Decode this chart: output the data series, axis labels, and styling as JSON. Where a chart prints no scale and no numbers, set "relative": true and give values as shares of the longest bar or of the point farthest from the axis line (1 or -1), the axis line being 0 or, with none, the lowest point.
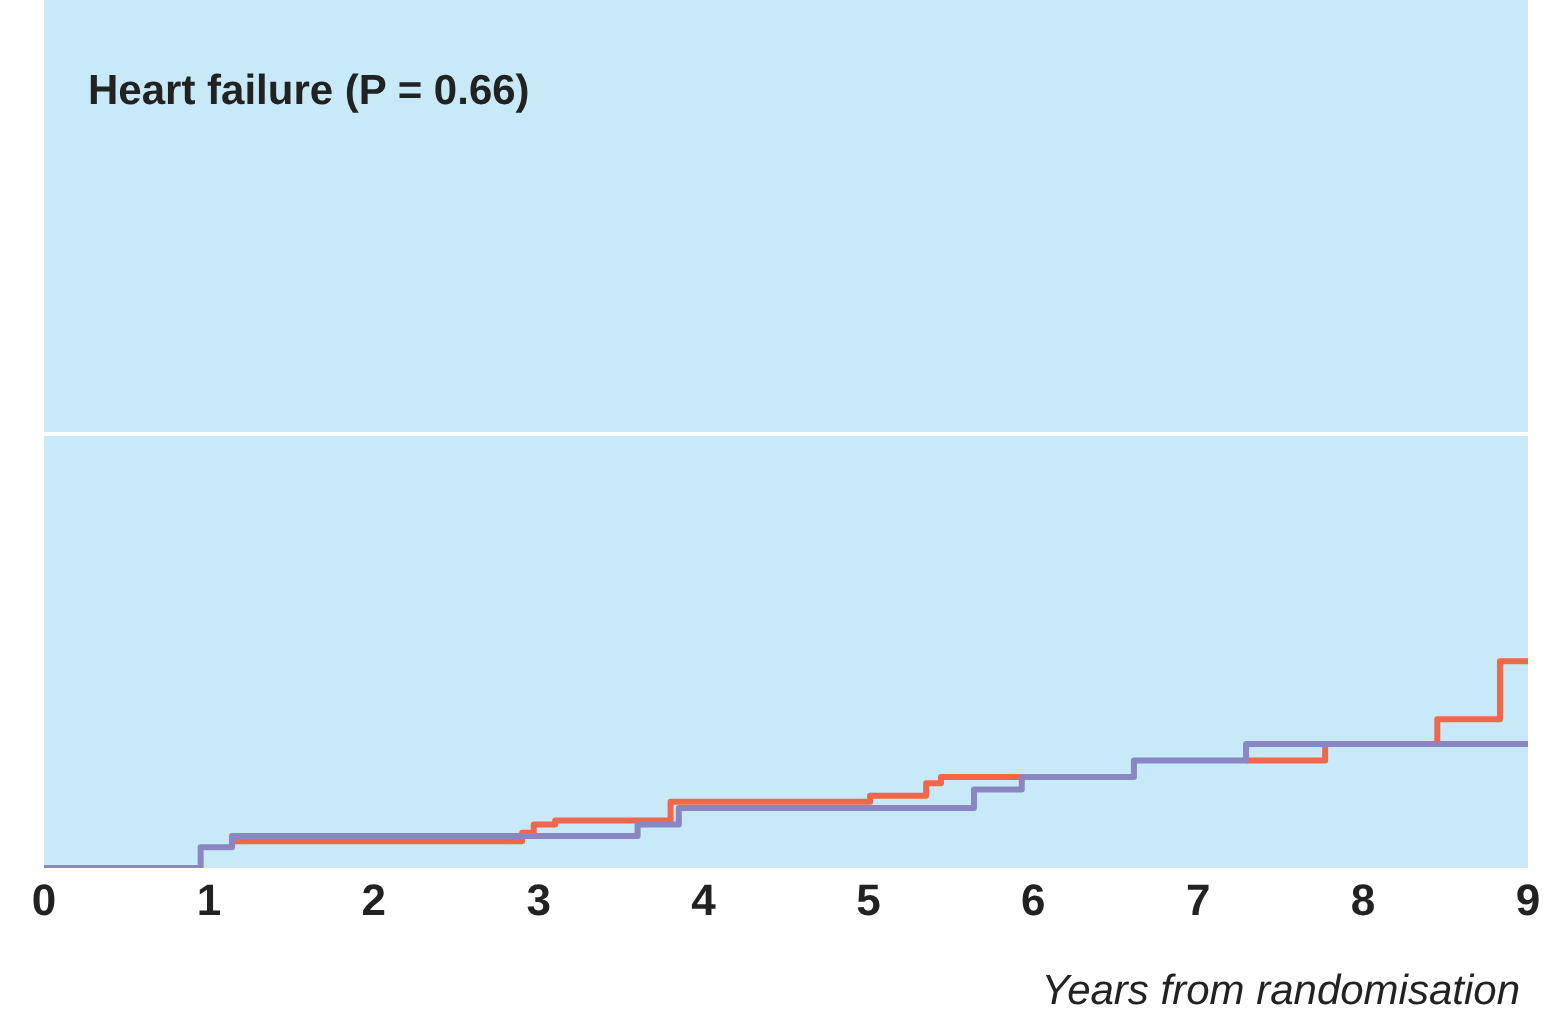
{
  "chart_data": {
    "type": "step",
    "title": "Heart failure (P = 0.66)",
    "xlabel": "Years from randomisation",
    "relative": true,
    "xlim": [
      0,
      9
    ],
    "xticks": [
      0,
      1,
      2,
      3,
      4,
      5,
      6,
      7,
      8,
      9
    ],
    "ref_lines": [
      {
        "axis": "y",
        "value": 2.1,
        "color": "#ffffff"
      }
    ],
    "series": [
      {
        "color": "#f0674a",
        "x": [
          1.14,
          2.9,
          2.97,
          3.1,
          3.8,
          5.01,
          5.35,
          5.44,
          5.93,
          6.61,
          7.29,
          7.77,
          8.45,
          8.83,
          9
        ],
        "values": [
          0.13,
          0.17,
          0.21,
          0.23,
          0.32,
          0.35,
          0.41,
          0.44,
          0.44,
          null,
          0.52,
          0.6,
          0.72,
          1.0,
          1.0
        ]
      },
      {
        "color": "#8a86c4",
        "x": [
          0,
          0.95,
          1.14,
          3.6,
          3.85,
          5.64,
          5.93,
          6.61,
          7.29,
          9
        ],
        "values": [
          0,
          0.1,
          0.155,
          0.21,
          0.29,
          0.38,
          0.44,
          0.52,
          0.6,
          0.6
        ]
      }
    ]
  }
}
